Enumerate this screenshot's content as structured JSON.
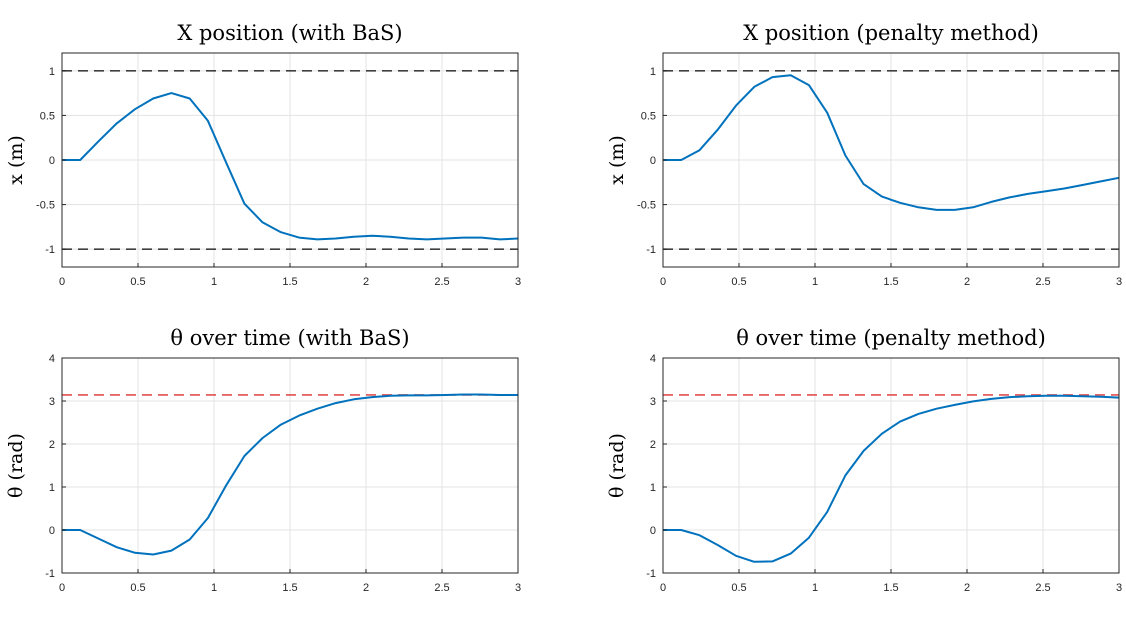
{
  "colors": {
    "series": "#0072bd",
    "bound": "#404040",
    "target": "#e05050"
  },
  "chart_data": [
    {
      "type": "line",
      "title": "X position (with BaS)",
      "ylabel": "x (m)",
      "xlim": [
        0,
        3
      ],
      "ylim": [
        -1.2,
        1.2
      ],
      "xticks": [
        0,
        0.5,
        1,
        1.5,
        2,
        2.5,
        3
      ],
      "xtick_labels": [
        "0",
        "0.5",
        "1",
        "1.5",
        "2",
        "2.5",
        "3"
      ],
      "yticks": [
        -1,
        -0.5,
        0,
        0.5,
        1
      ],
      "ytick_labels": [
        "-1",
        "-0.5",
        "0",
        "0.5",
        "1"
      ],
      "grid": true,
      "reference_lines": [
        {
          "y": 1,
          "style": "dashed",
          "color": "#404040"
        },
        {
          "y": -1,
          "style": "dashed",
          "color": "#404040"
        }
      ],
      "series": [
        {
          "color": "#0072bd",
          "x": [
            0,
            0.12,
            0.24,
            0.36,
            0.48,
            0.6,
            0.72,
            0.84,
            0.96,
            1.08,
            1.2,
            1.32,
            1.44,
            1.56,
            1.68,
            1.8,
            1.92,
            2.04,
            2.16,
            2.28,
            2.4,
            2.52,
            2.64,
            2.76,
            2.88,
            3.0
          ],
          "y": [
            0,
            0,
            0.21,
            0.41,
            0.57,
            0.69,
            0.75,
            0.69,
            0.44,
            -0.03,
            -0.49,
            -0.7,
            -0.81,
            -0.87,
            -0.89,
            -0.88,
            -0.86,
            -0.85,
            -0.86,
            -0.88,
            -0.89,
            -0.88,
            -0.87,
            -0.87,
            -0.89,
            -0.88
          ]
        }
      ]
    },
    {
      "type": "line",
      "title": "X position (penalty method)",
      "ylabel": "x (m)",
      "xlim": [
        0,
        3
      ],
      "ylim": [
        -1.2,
        1.2
      ],
      "xticks": [
        0,
        0.5,
        1,
        1.5,
        2,
        2.5,
        3
      ],
      "xtick_labels": [
        "0",
        "0.5",
        "1",
        "1.5",
        "2",
        "2.5",
        "3"
      ],
      "yticks": [
        -1,
        -0.5,
        0,
        0.5,
        1
      ],
      "ytick_labels": [
        "-1",
        "-0.5",
        "0",
        "0.5",
        "1"
      ],
      "grid": true,
      "reference_lines": [
        {
          "y": 1,
          "style": "dashed",
          "color": "#404040"
        },
        {
          "y": -1,
          "style": "dashed",
          "color": "#404040"
        }
      ],
      "series": [
        {
          "color": "#0072bd",
          "x": [
            0,
            0.12,
            0.24,
            0.36,
            0.48,
            0.6,
            0.72,
            0.84,
            0.96,
            1.08,
            1.2,
            1.32,
            1.44,
            1.56,
            1.68,
            1.8,
            1.92,
            2.04,
            2.16,
            2.28,
            2.4,
            2.52,
            2.64,
            2.76,
            2.88,
            3.0
          ],
          "y": [
            0,
            0,
            0.11,
            0.34,
            0.61,
            0.82,
            0.93,
            0.95,
            0.84,
            0.53,
            0.05,
            -0.27,
            -0.41,
            -0.48,
            -0.53,
            -0.56,
            -0.56,
            -0.53,
            -0.47,
            -0.42,
            -0.38,
            -0.35,
            -0.32,
            -0.28,
            -0.24,
            -0.2
          ]
        }
      ]
    },
    {
      "type": "line",
      "title": "θ over time (with BaS)",
      "ylabel": "θ (rad)",
      "xlim": [
        0,
        3
      ],
      "ylim": [
        -1,
        4
      ],
      "xticks": [
        0,
        0.5,
        1,
        1.5,
        2,
        2.5,
        3
      ],
      "xtick_labels": [
        "0",
        "0.5",
        "1",
        "1.5",
        "2",
        "2.5",
        "3"
      ],
      "yticks": [
        -1,
        0,
        1,
        2,
        3,
        4
      ],
      "ytick_labels": [
        "-1",
        "0",
        "1",
        "2",
        "3",
        "4"
      ],
      "grid": true,
      "reference_lines": [
        {
          "y": 3.14,
          "style": "dashed",
          "color": "#e05050"
        }
      ],
      "series": [
        {
          "color": "#0072bd",
          "x": [
            0,
            0.12,
            0.24,
            0.36,
            0.48,
            0.6,
            0.72,
            0.84,
            0.96,
            1.08,
            1.2,
            1.32,
            1.44,
            1.56,
            1.68,
            1.8,
            1.92,
            2.04,
            2.16,
            2.28,
            2.4,
            2.52,
            2.64,
            2.76,
            2.88,
            3.0
          ],
          "y": [
            0,
            0,
            -0.2,
            -0.4,
            -0.53,
            -0.57,
            -0.48,
            -0.22,
            0.28,
            1.04,
            1.72,
            2.14,
            2.45,
            2.66,
            2.82,
            2.95,
            3.04,
            3.09,
            3.12,
            3.13,
            3.13,
            3.14,
            3.15,
            3.15,
            3.14,
            3.14
          ]
        }
      ]
    },
    {
      "type": "line",
      "title": "θ over time (penalty method)",
      "ylabel": "θ (rad)",
      "xlim": [
        0,
        3
      ],
      "ylim": [
        -1,
        4
      ],
      "xticks": [
        0,
        0.5,
        1,
        1.5,
        2,
        2.5,
        3
      ],
      "xtick_labels": [
        "0",
        "0.5",
        "1",
        "1.5",
        "2",
        "2.5",
        "3"
      ],
      "yticks": [
        -1,
        0,
        1,
        2,
        3,
        4
      ],
      "ytick_labels": [
        "-1",
        "0",
        "1",
        "2",
        "3",
        "4"
      ],
      "grid": true,
      "reference_lines": [
        {
          "y": 3.14,
          "style": "dashed",
          "color": "#e05050"
        }
      ],
      "series": [
        {
          "color": "#0072bd",
          "x": [
            0,
            0.12,
            0.24,
            0.36,
            0.48,
            0.6,
            0.72,
            0.84,
            0.96,
            1.08,
            1.2,
            1.32,
            1.44,
            1.56,
            1.68,
            1.8,
            1.92,
            2.04,
            2.16,
            2.28,
            2.4,
            2.52,
            2.64,
            2.76,
            2.88,
            3.0
          ],
          "y": [
            0,
            0,
            -0.12,
            -0.35,
            -0.6,
            -0.74,
            -0.73,
            -0.55,
            -0.18,
            0.42,
            1.27,
            1.84,
            2.24,
            2.52,
            2.7,
            2.82,
            2.91,
            2.99,
            3.05,
            3.09,
            3.11,
            3.12,
            3.12,
            3.11,
            3.1,
            3.08
          ]
        }
      ]
    }
  ]
}
